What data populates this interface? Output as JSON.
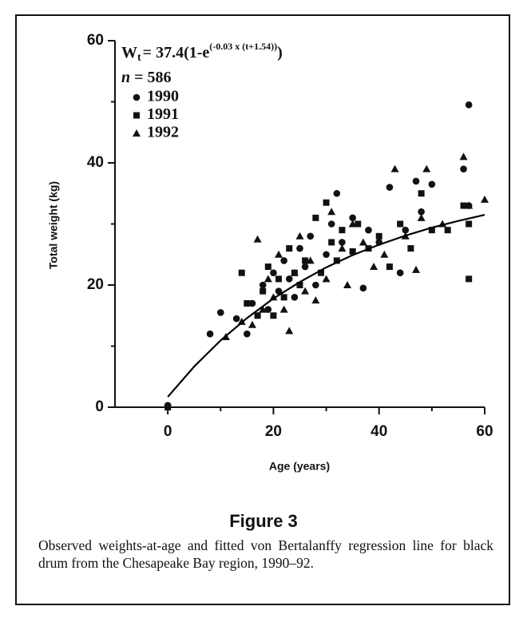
{
  "chart_data": {
    "type": "scatter",
    "xlabel": "Age (years)",
    "ylabel": "Total weight (kg)",
    "xlim": [
      -10,
      60
    ],
    "ylim": [
      0,
      60
    ],
    "xticks": [
      0,
      20,
      40,
      60
    ],
    "yticks": [
      0,
      20,
      40,
      60
    ],
    "xminor_ticks": [
      10,
      30,
      50
    ],
    "yminor_ticks": [
      10,
      30,
      50
    ],
    "equation": {
      "base": "W",
      "subscript": "t",
      "middle": "= 37.4(1-e",
      "superscript": "(-0.03 x (t+1.54))",
      "end": ")"
    },
    "n_label": {
      "symbol": "n",
      "text": "= 586"
    },
    "series": [
      {
        "name": "1990",
        "marker": "circle",
        "color": "#111111",
        "x": [
          0,
          8,
          10,
          13,
          15,
          16,
          18,
          19,
          20,
          21,
          22,
          23,
          24,
          25,
          26,
          27,
          28,
          30,
          31,
          32,
          33,
          35,
          37,
          38,
          40,
          42,
          44,
          45,
          47,
          48,
          50,
          56,
          57,
          57
        ],
        "values": [
          0.3,
          12,
          15.5,
          14.5,
          12,
          17,
          20,
          16,
          22,
          19,
          24,
          21,
          18,
          26,
          23,
          28,
          20,
          25,
          30,
          35,
          27,
          31,
          19.5,
          29,
          27,
          36,
          22,
          29,
          37,
          32,
          36.5,
          39,
          49.5,
          33
        ]
      },
      {
        "name": "1991",
        "marker": "square",
        "color": "#111111",
        "x": [
          0,
          14,
          15,
          17,
          18,
          19,
          20,
          21,
          22,
          23,
          24,
          25,
          26,
          28,
          29,
          30,
          31,
          32,
          33,
          35,
          36,
          38,
          40,
          42,
          44,
          46,
          48,
          50,
          53,
          57,
          57,
          56
        ],
        "values": [
          0,
          22,
          17,
          15,
          19,
          23,
          15,
          21,
          18,
          26,
          22,
          20,
          24,
          31,
          22,
          33.5,
          27,
          24,
          29,
          25.5,
          30,
          26,
          28,
          23,
          30,
          26,
          35,
          29,
          29,
          30,
          21,
          33
        ]
      },
      {
        "name": "1992",
        "marker": "triangle",
        "color": "#111111",
        "x": [
          11,
          14,
          16,
          17,
          18,
          19,
          20,
          21,
          22,
          23,
          24,
          25,
          26,
          27,
          28,
          30,
          31,
          33,
          34,
          35,
          37,
          39,
          41,
          43,
          45,
          47,
          48,
          49,
          52,
          56,
          57,
          60
        ],
        "values": [
          11.5,
          14,
          13.5,
          27.5,
          16,
          21,
          18,
          25,
          16,
          12.5,
          22,
          28,
          19,
          24,
          17.5,
          21,
          32,
          26,
          20,
          30,
          27,
          23,
          25,
          39,
          28,
          22.5,
          31,
          39,
          30,
          41,
          33,
          34
        ]
      }
    ],
    "fit": {
      "color": "#000000",
      "x": [
        0,
        5,
        10,
        15,
        20,
        25,
        30,
        35,
        40,
        45,
        50,
        55,
        60
      ],
      "values": [
        1.69,
        6.66,
        10.94,
        14.6,
        17.8,
        20.5,
        22.9,
        24.9,
        26.6,
        28.1,
        29.4,
        30.5,
        31.5
      ]
    }
  },
  "caption": {
    "figure": "Figure 3",
    "text": "Observed weights-at-age and fitted von Bertalanffy regression line for black drum from the Chesapeake Bay region, 1990–92."
  }
}
